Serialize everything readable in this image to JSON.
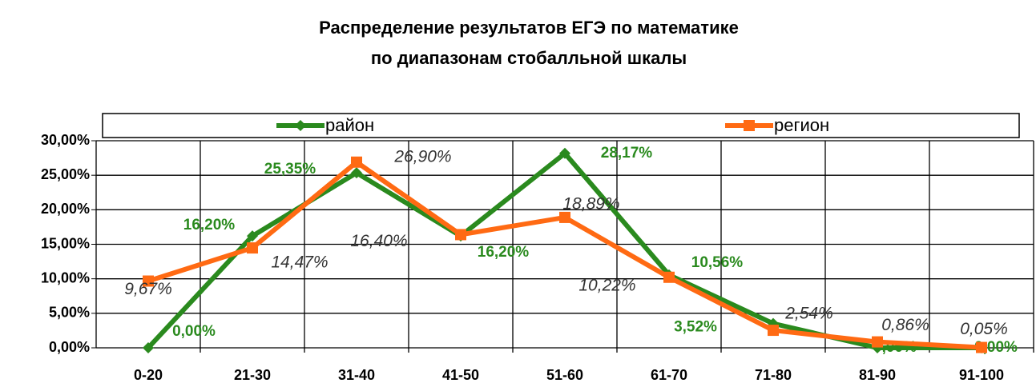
{
  "chart_data": {
    "type": "line",
    "title": "Распределение результатов ЕГЭ по математике",
    "subtitle": "по диапазонам стобалльной шкалы",
    "categories": [
      "0-20",
      "21-30",
      "31-40",
      "41-50",
      "51-60",
      "61-70",
      "71-80",
      "81-90",
      "91-100"
    ],
    "series": [
      {
        "name": "район",
        "color": "#2a8a1e",
        "values": [
          0,
          16.2,
          25.35,
          16.2,
          28.17,
          10.56,
          3.52,
          0,
          0
        ],
        "value_labels": [
          "0,00%",
          "16,20%",
          "25,35%",
          "16,20%",
          "28,17%",
          "10,56%",
          "3,52%",
          "0,00%",
          "0,00%"
        ]
      },
      {
        "name": "регион",
        "color": "#ff6a13",
        "values": [
          9.67,
          14.47,
          26.9,
          16.4,
          18.89,
          10.22,
          2.54,
          0.86,
          0.05
        ],
        "value_labels": [
          "9,67%",
          "14,47%",
          "26,90%",
          "16,40%",
          "18,89%",
          "10,22%",
          "2,54%",
          "0,86%",
          "0,05%"
        ]
      }
    ],
    "ylim": [
      0,
      30
    ],
    "yticks": [
      {
        "value": 0,
        "label": "0,00%"
      },
      {
        "value": 5,
        "label": "5,00%"
      },
      {
        "value": 10,
        "label": "10,00%"
      },
      {
        "value": 15,
        "label": "15,00%"
      },
      {
        "value": 20,
        "label": "20,00%"
      },
      {
        "value": 25,
        "label": "25,00%"
      },
      {
        "value": 30,
        "label": "30,00%"
      }
    ],
    "grid": true,
    "legend": "top"
  }
}
